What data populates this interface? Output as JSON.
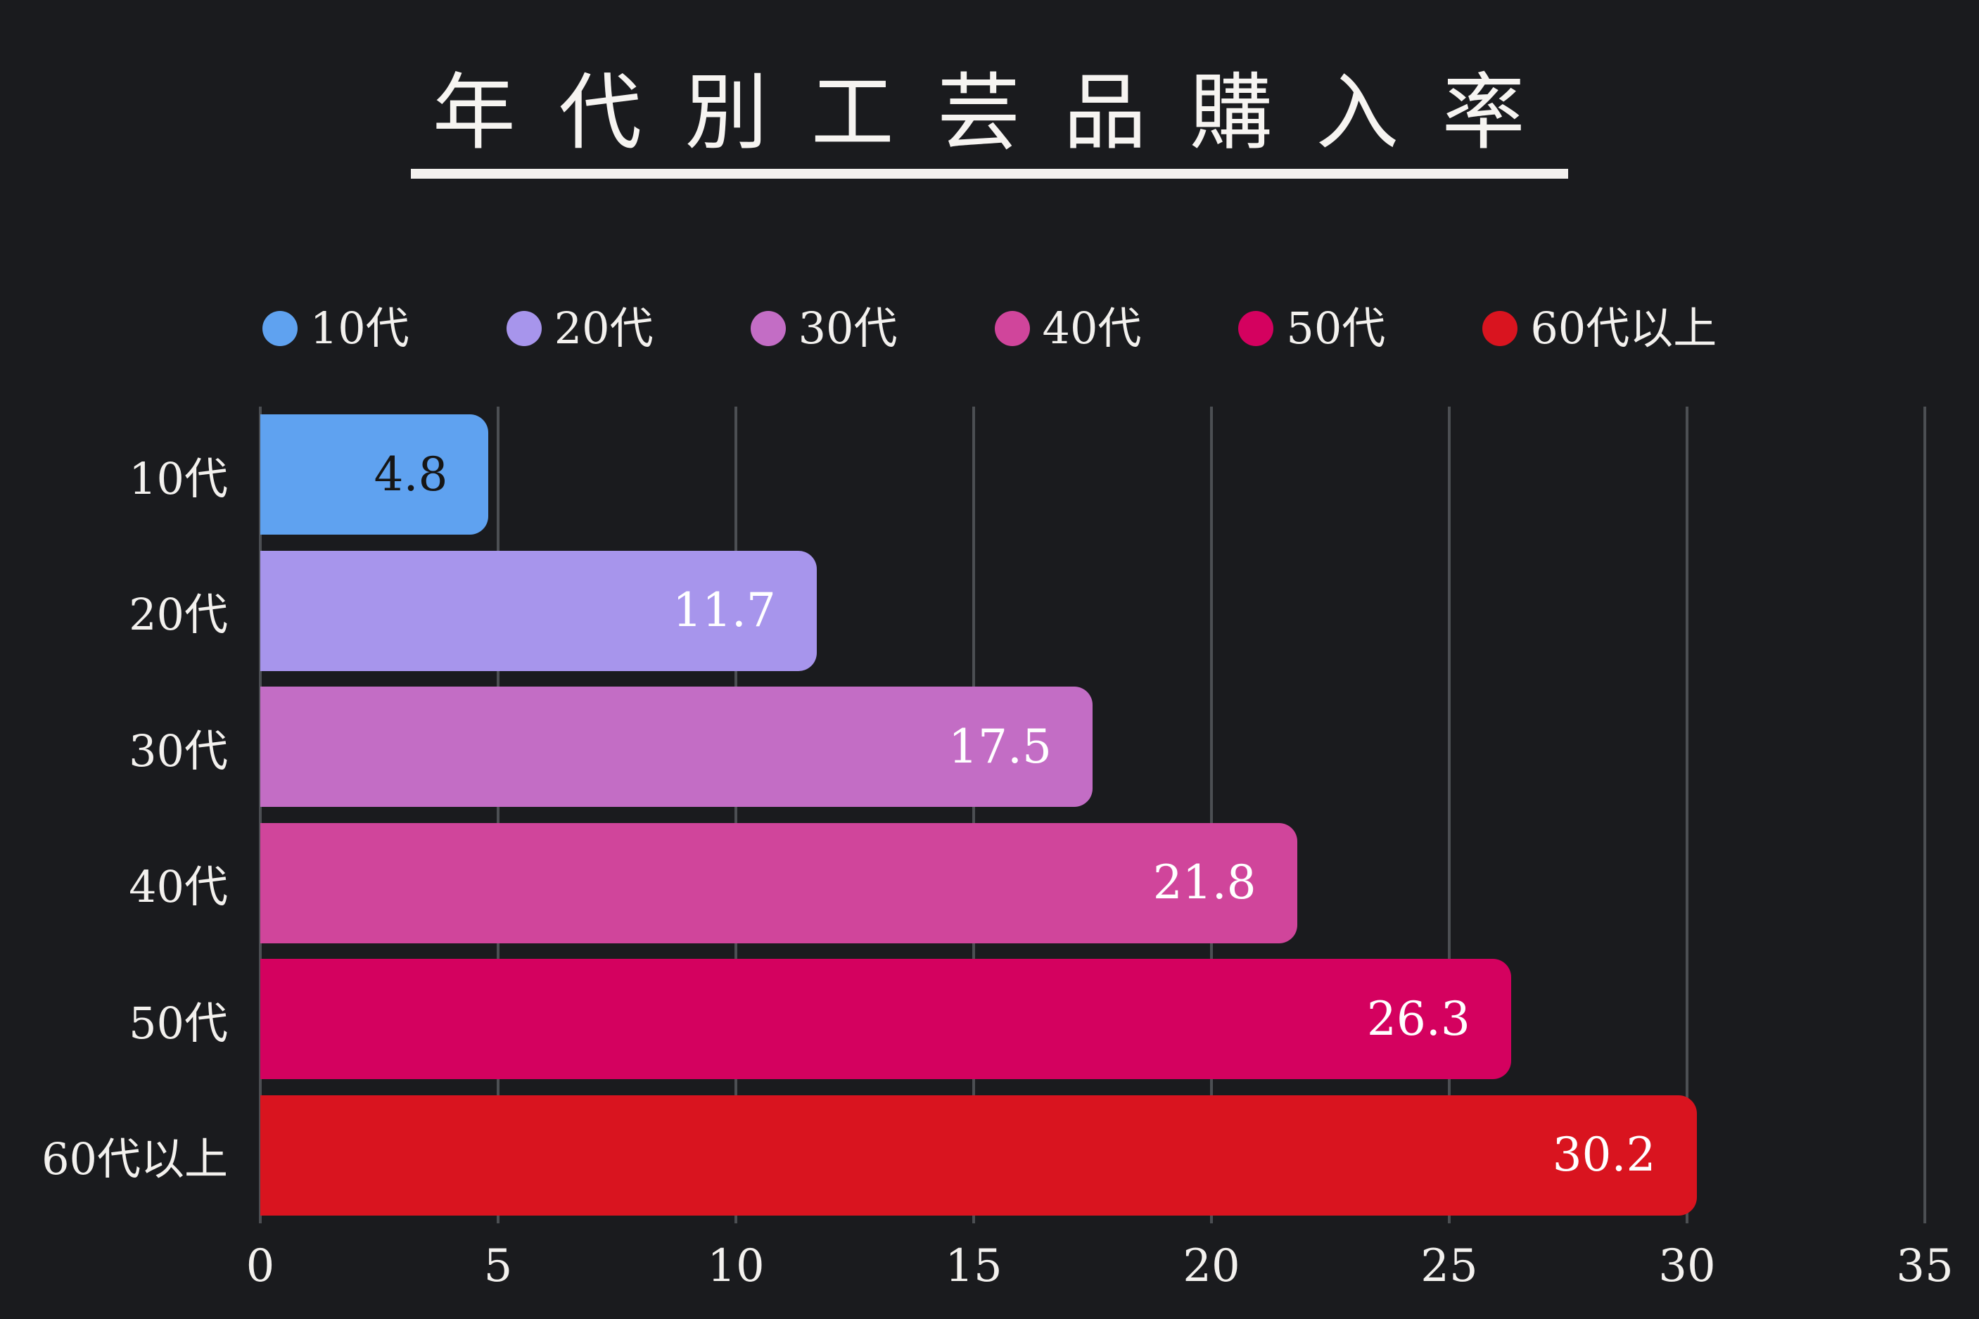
{
  "chart_data": {
    "type": "bar",
    "orientation": "horizontal",
    "title": "年代別工芸品購入率",
    "categories": [
      "10代",
      "20代",
      "30代",
      "40代",
      "50代",
      "60代以上"
    ],
    "values": [
      4.8,
      11.7,
      17.5,
      21.8,
      26.3,
      30.2
    ],
    "value_labels": [
      "4.8",
      "11.7",
      "17.5",
      "21.8",
      "26.3",
      "30.2"
    ],
    "value_label_colors": [
      "#161616",
      "#ffffff",
      "#ffffff",
      "#ffffff",
      "#ffffff",
      "#ffffff"
    ],
    "bar_colors": [
      "#5fa2f0",
      "#a795ec",
      "#c36dc5",
      "#d0459b",
      "#d4015f",
      "#d9141f"
    ],
    "xlim": [
      0,
      35
    ],
    "xticks": [
      "0",
      "5",
      "10",
      "15",
      "20",
      "25",
      "30",
      "35"
    ],
    "grid": true,
    "gridline_color": "#4c4f53",
    "background_color": "#1a1b1e",
    "text_color": "#f3f1ee",
    "legend": {
      "position": "top",
      "items": [
        {
          "label": "10代",
          "color": "#5fa2f0"
        },
        {
          "label": "20代",
          "color": "#a795ec"
        },
        {
          "label": "30代",
          "color": "#c36dc5"
        },
        {
          "label": "40代",
          "color": "#d0459b"
        },
        {
          "label": "50代",
          "color": "#d4015f"
        },
        {
          "label": "60代以上",
          "color": "#d9141f"
        }
      ]
    }
  }
}
